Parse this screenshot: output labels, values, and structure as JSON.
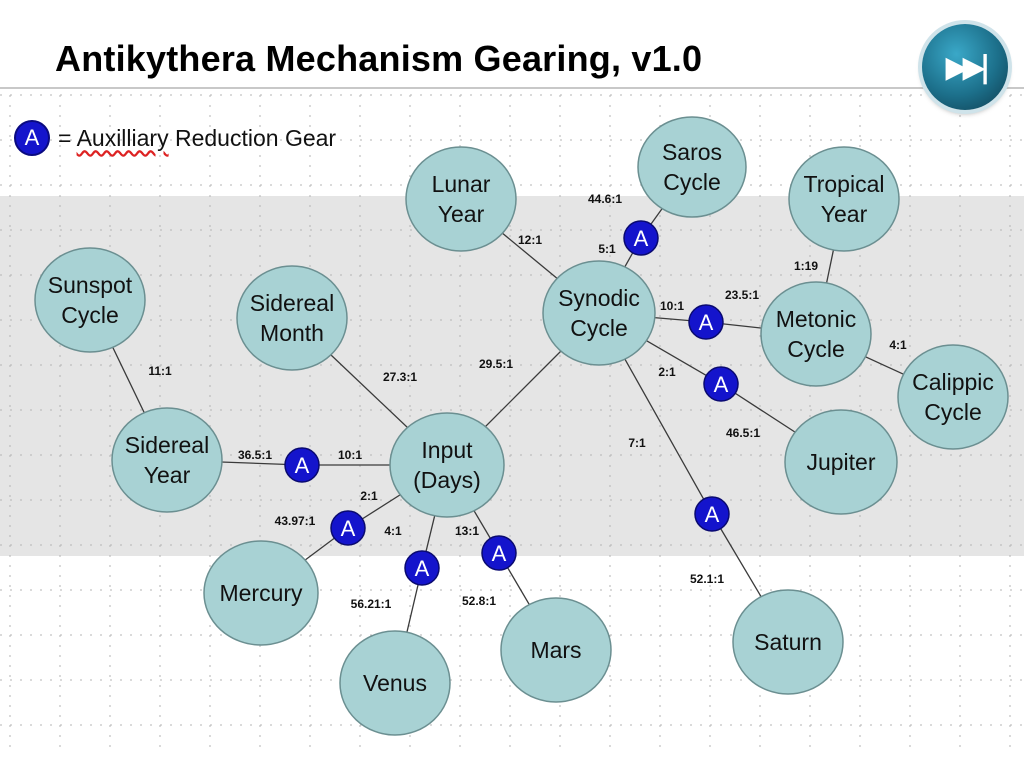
{
  "title": "Antikythera Mechanism Gearing, v1.0",
  "legend": {
    "badge": "A",
    "equals": "=",
    "word1": "Auxilliary",
    "rest": "Reduction Gear"
  },
  "next_button": {
    "icon": "skip-forward-icon",
    "glyph": "▶▶|"
  },
  "colors": {
    "node_fill": "#a8d2d4",
    "node_stroke": "#6b8f91",
    "aux_fill": "#1414cc",
    "band": "#e5e5e5"
  },
  "nodes": [
    {
      "id": "input",
      "lines": [
        "Input",
        "(Days)"
      ]
    },
    {
      "id": "sunspot",
      "lines": [
        "Sunspot",
        "Cycle"
      ]
    },
    {
      "id": "sidereal-month",
      "lines": [
        "Sidereal",
        "Month"
      ]
    },
    {
      "id": "sidereal-year",
      "lines": [
        "Sidereal",
        "Year"
      ]
    },
    {
      "id": "lunar-year",
      "lines": [
        "Lunar",
        "Year"
      ]
    },
    {
      "id": "saros",
      "lines": [
        "Saros",
        "Cycle"
      ]
    },
    {
      "id": "synodic",
      "lines": [
        "Synodic",
        "Cycle"
      ]
    },
    {
      "id": "tropical",
      "lines": [
        "Tropical",
        "Year"
      ]
    },
    {
      "id": "metonic",
      "lines": [
        "Metonic",
        "Cycle"
      ]
    },
    {
      "id": "calippic",
      "lines": [
        "Calippic",
        "Cycle"
      ]
    },
    {
      "id": "jupiter",
      "lines": [
        "Jupiter"
      ]
    },
    {
      "id": "saturn",
      "lines": [
        "Saturn"
      ]
    },
    {
      "id": "mercury",
      "lines": [
        "Mercury"
      ]
    },
    {
      "id": "venus",
      "lines": [
        "Venus"
      ]
    },
    {
      "id": "mars",
      "lines": [
        "Mars"
      ]
    }
  ],
  "aux_gears": [
    {
      "id": "aux-sidereal-year",
      "label": "A"
    },
    {
      "id": "aux-mercury",
      "label": "A"
    },
    {
      "id": "aux-venus",
      "label": "A"
    },
    {
      "id": "aux-mars",
      "label": "A"
    },
    {
      "id": "aux-saros",
      "label": "A"
    },
    {
      "id": "aux-metonic",
      "label": "A"
    },
    {
      "id": "aux-jupiter",
      "label": "A"
    },
    {
      "id": "aux-saturn",
      "label": "A"
    }
  ],
  "edges": [
    {
      "from": "sunspot",
      "to": "sidereal-year"
    },
    {
      "from": "sidereal-month",
      "to": "input"
    },
    {
      "from": "sidereal-year",
      "to": "aux-sidereal-year"
    },
    {
      "from": "aux-sidereal-year",
      "to": "input"
    },
    {
      "from": "input",
      "to": "synodic"
    },
    {
      "from": "input",
      "to": "aux-mercury"
    },
    {
      "from": "aux-mercury",
      "to": "mercury"
    },
    {
      "from": "input",
      "to": "aux-venus"
    },
    {
      "from": "aux-venus",
      "to": "venus"
    },
    {
      "from": "input",
      "to": "aux-mars"
    },
    {
      "from": "aux-mars",
      "to": "mars"
    },
    {
      "from": "lunar-year",
      "to": "synodic"
    },
    {
      "from": "synodic",
      "to": "aux-saros"
    },
    {
      "from": "aux-saros",
      "to": "saros"
    },
    {
      "from": "synodic",
      "to": "aux-metonic"
    },
    {
      "from": "aux-metonic",
      "to": "metonic"
    },
    {
      "from": "tropical",
      "to": "metonic"
    },
    {
      "from": "metonic",
      "to": "calippic"
    },
    {
      "from": "synodic",
      "to": "aux-jupiter"
    },
    {
      "from": "aux-jupiter",
      "to": "jupiter"
    },
    {
      "from": "synodic",
      "to": "aux-saturn"
    },
    {
      "from": "aux-saturn",
      "to": "saturn"
    }
  ],
  "ratios": [
    "11:1",
    "27.3:1",
    "36.5:1",
    "10:1",
    "29.5:1",
    "2:1",
    "43.97:1",
    "4:1",
    "13:1",
    "56.21:1",
    "52.8:1",
    "12:1",
    "44.6:1",
    "5:1",
    "10:1",
    "23.5:1",
    "1:19",
    "4:1",
    "2:1",
    "46.5:1",
    "7:1",
    "52.1:1"
  ]
}
